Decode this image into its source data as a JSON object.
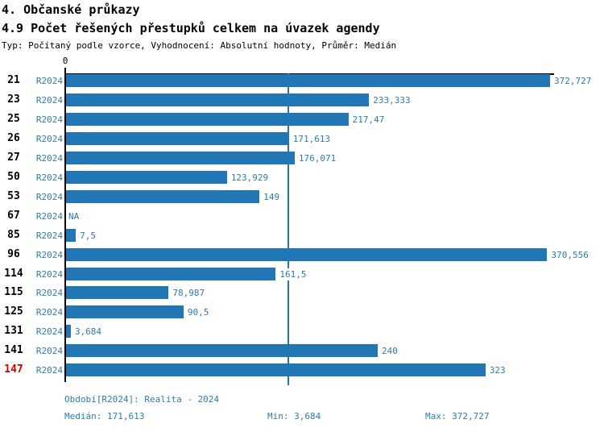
{
  "header": {
    "title": "4. Občanské průkazy",
    "subtitle": "4.9 Počet řešených přestupků celkem na úvazek agendy",
    "type_line": "Typ: Počítaný podle vzorce, Vyhodnocení: Absolutní hodnoty, Průměr: Medián"
  },
  "chart_data": {
    "type": "bar",
    "orientation": "horizontal",
    "title": "4.9 Počet řešených přestupků celkem na úvazek agendy",
    "zero_label": "0",
    "axis_min": 0,
    "max_value": 372.727,
    "median_value": 171.613,
    "min_value": 3.684,
    "grid": "median-reference-line-only",
    "legend": "none",
    "categories": [
      "21",
      "23",
      "25",
      "26",
      "27",
      "50",
      "53",
      "67",
      "85",
      "96",
      "114",
      "115",
      "125",
      "131",
      "141",
      "147"
    ],
    "period_label": "R2024",
    "rows": [
      {
        "id": "21",
        "period": "R2024",
        "value": 372.727,
        "value_label": "372,727",
        "highlight": false
      },
      {
        "id": "23",
        "period": "R2024",
        "value": 233.333,
        "value_label": "233,333",
        "highlight": false
      },
      {
        "id": "25",
        "period": "R2024",
        "value": 217.47,
        "value_label": "217,47",
        "highlight": false
      },
      {
        "id": "26",
        "period": "R2024",
        "value": 171.613,
        "value_label": "171,613",
        "highlight": false
      },
      {
        "id": "27",
        "period": "R2024",
        "value": 176.071,
        "value_label": "176,071",
        "highlight": false
      },
      {
        "id": "50",
        "period": "R2024",
        "value": 123.929,
        "value_label": "123,929",
        "highlight": false
      },
      {
        "id": "53",
        "period": "R2024",
        "value": 149,
        "value_label": "149",
        "highlight": false
      },
      {
        "id": "67",
        "period": "R2024",
        "value": null,
        "value_label": "NA",
        "highlight": false
      },
      {
        "id": "85",
        "period": "R2024",
        "value": 7.5,
        "value_label": "7,5",
        "highlight": false
      },
      {
        "id": "96",
        "period": "R2024",
        "value": 370.556,
        "value_label": "370,556",
        "highlight": false
      },
      {
        "id": "114",
        "period": "R2024",
        "value": 161.5,
        "value_label": "161,5",
        "highlight": false
      },
      {
        "id": "115",
        "period": "R2024",
        "value": 78.987,
        "value_label": "78,987",
        "highlight": false
      },
      {
        "id": "125",
        "period": "R2024",
        "value": 90.5,
        "value_label": "90,5",
        "highlight": false
      },
      {
        "id": "131",
        "period": "R2024",
        "value": 3.684,
        "value_label": "3,684",
        "highlight": false
      },
      {
        "id": "141",
        "period": "R2024",
        "value": 240,
        "value_label": "240",
        "highlight": false
      },
      {
        "id": "147",
        "period": "R2024",
        "value": 323,
        "value_label": "323",
        "highlight": true
      }
    ],
    "colors": {
      "bar": "#2176b5",
      "label_blue": "#2b7cb9",
      "median_line": "#2176b5",
      "highlight_red": "#cc0000",
      "axis_black": "#000000"
    }
  },
  "footer": {
    "period_line": "Období[R2024]: Realita - 2024",
    "median": "Medián: 171,613",
    "min": "Min: 3,684",
    "max": "Max: 372,727"
  }
}
